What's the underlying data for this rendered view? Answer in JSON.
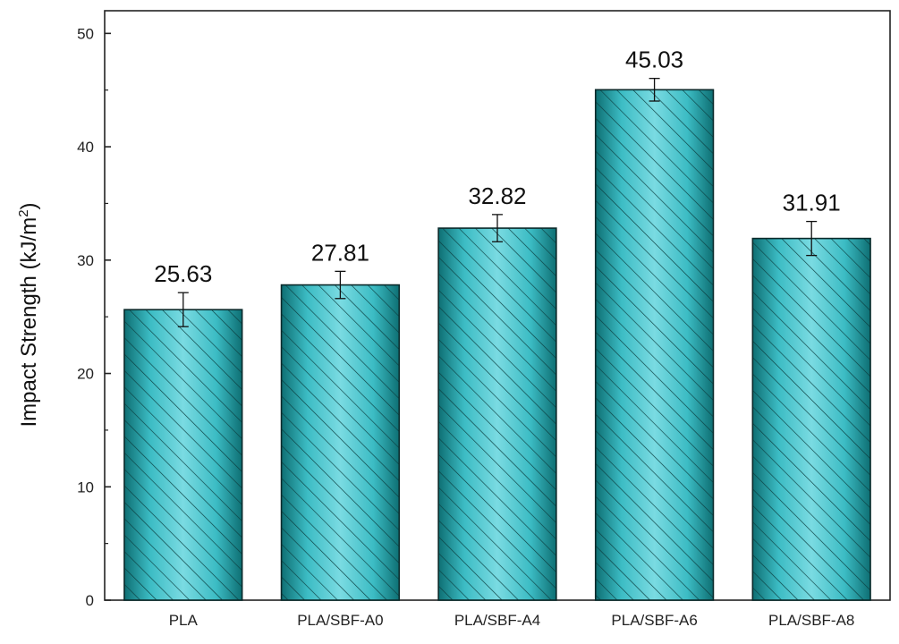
{
  "chart_data": {
    "type": "bar",
    "categories": [
      "PLA",
      "PLA/SBF-A0",
      "PLA/SBF-A4",
      "PLA/SBF-A6",
      "PLA/SBF-A8"
    ],
    "values": [
      25.63,
      27.81,
      32.82,
      45.03,
      31.91
    ],
    "value_labels": [
      "25.63",
      "27.81",
      "32.82",
      "45.03",
      "31.91"
    ],
    "error": [
      1.5,
      1.2,
      1.2,
      1.0,
      1.5
    ],
    "ylabel": "Impact Strength (kJ/m",
    "ylabel_sup": "2",
    "ylabel_end": ")",
    "ylim": [
      0,
      52
    ],
    "yticks": [
      0,
      10,
      20,
      30,
      40,
      50
    ],
    "grid": false,
    "bar_pattern": "diagonal-hatch",
    "colors": {
      "bar_light": "#6fd4dc",
      "bar_mid": "#3cbcc4",
      "bar_dark": "#0e6f73",
      "hatch": "#0b3e40",
      "outline": "#0a2a2b"
    }
  }
}
